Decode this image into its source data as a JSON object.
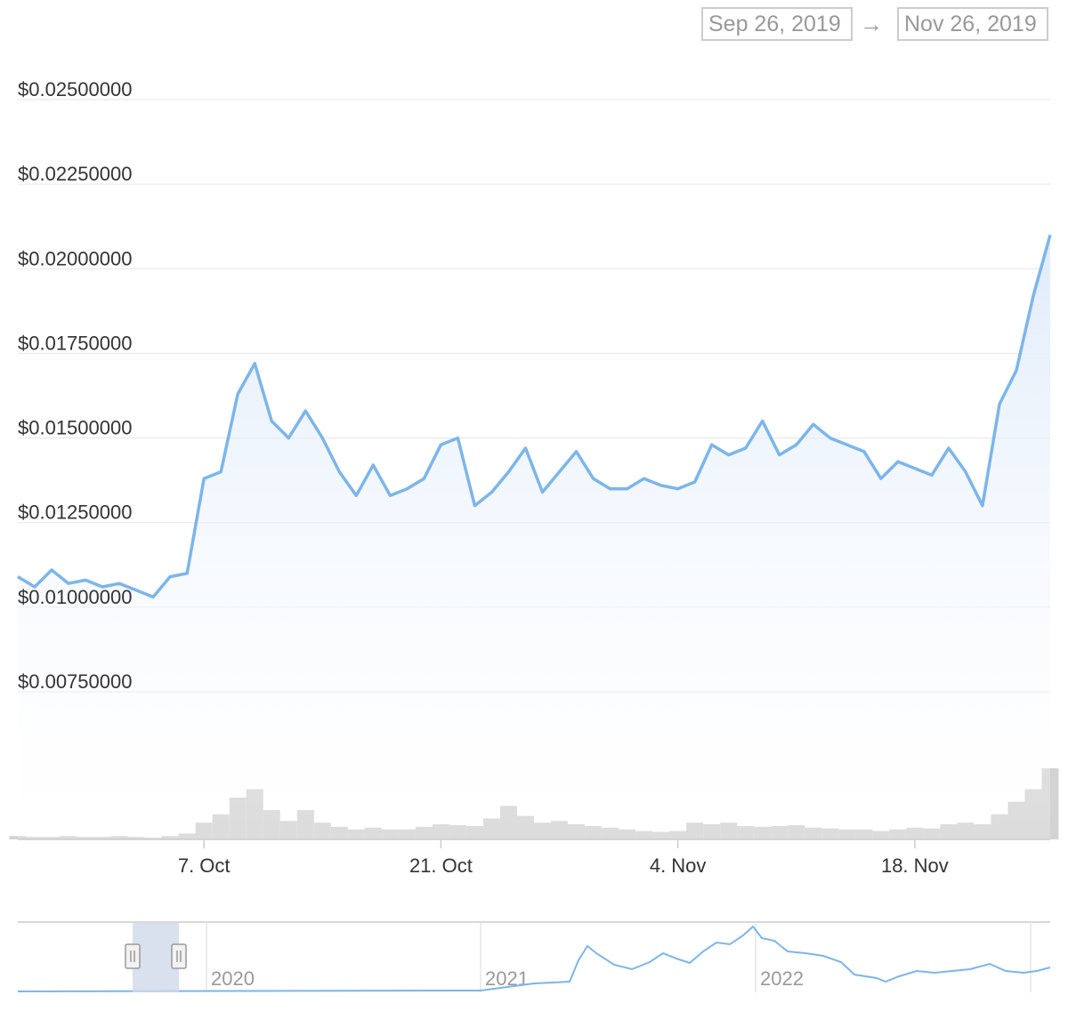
{
  "range_selector": {
    "from": "Sep 26, 2019",
    "arrow": "→",
    "to": "Nov 26, 2019"
  },
  "colors": {
    "line": "#7cb5ec",
    "area_top": "#e3eefb",
    "grid": "#e6e6e6",
    "volume": "#c8c8c8",
    "navigator_mask": "#cfd8ea"
  },
  "chart_data": {
    "type": "line",
    "title": "",
    "xlabel": "",
    "ylabel": "",
    "ylim": [
      0.0075,
      0.025
    ],
    "y_ticks": [
      {
        "value": 0.025,
        "label": "$0.02500000"
      },
      {
        "value": 0.0225,
        "label": "$0.02250000"
      },
      {
        "value": 0.02,
        "label": "$0.02000000"
      },
      {
        "value": 0.0175,
        "label": "$0.01750000"
      },
      {
        "value": 0.015,
        "label": "$0.01500000"
      },
      {
        "value": 0.0125,
        "label": "$0.01250000"
      },
      {
        "value": 0.01,
        "label": "$0.01000000"
      },
      {
        "value": 0.0075,
        "label": "$0.00750000"
      }
    ],
    "x_range": [
      "2019-09-26",
      "2019-11-26"
    ],
    "x_ticks": [
      {
        "date": "2019-10-07",
        "label": "7. Oct"
      },
      {
        "date": "2019-10-21",
        "label": "21. Oct"
      },
      {
        "date": "2019-11-04",
        "label": "4. Nov"
      },
      {
        "date": "2019-11-18",
        "label": "18. Nov"
      }
    ],
    "grid": true,
    "series": [
      {
        "x": [
          "2019-09-26",
          "2019-09-27",
          "2019-09-28",
          "2019-09-29",
          "2019-09-30",
          "2019-10-01",
          "2019-10-02",
          "2019-10-03",
          "2019-10-04",
          "2019-10-05",
          "2019-10-06",
          "2019-10-07",
          "2019-10-08",
          "2019-10-09",
          "2019-10-10",
          "2019-10-11",
          "2019-10-12",
          "2019-10-13",
          "2019-10-14",
          "2019-10-15",
          "2019-10-16",
          "2019-10-17",
          "2019-10-18",
          "2019-10-19",
          "2019-10-20",
          "2019-10-21",
          "2019-10-22",
          "2019-10-23",
          "2019-10-24",
          "2019-10-25",
          "2019-10-26",
          "2019-10-27",
          "2019-10-28",
          "2019-10-29",
          "2019-10-30",
          "2019-10-31",
          "2019-11-01",
          "2019-11-02",
          "2019-11-03",
          "2019-11-04",
          "2019-11-05",
          "2019-11-06",
          "2019-11-07",
          "2019-11-08",
          "2019-11-09",
          "2019-11-10",
          "2019-11-11",
          "2019-11-12",
          "2019-11-13",
          "2019-11-14",
          "2019-11-15",
          "2019-11-16",
          "2019-11-17",
          "2019-11-18",
          "2019-11-19",
          "2019-11-20",
          "2019-11-21",
          "2019-11-22",
          "2019-11-23",
          "2019-11-24",
          "2019-11-25",
          "2019-11-26"
        ],
        "values": [
          0.0109,
          0.0106,
          0.0111,
          0.0107,
          0.0108,
          0.0106,
          0.0107,
          0.0105,
          0.0103,
          0.0109,
          0.011,
          0.0138,
          0.014,
          0.0163,
          0.0172,
          0.0155,
          0.015,
          0.0158,
          0.015,
          0.014,
          0.0133,
          0.0142,
          0.0133,
          0.0135,
          0.0138,
          0.0148,
          0.015,
          0.013,
          0.0134,
          0.014,
          0.0147,
          0.0134,
          0.014,
          0.0146,
          0.0138,
          0.0135,
          0.0135,
          0.0138,
          0.0136,
          0.0135,
          0.0137,
          0.0148,
          0.0145,
          0.0147,
          0.0155,
          0.0145,
          0.0148,
          0.0154,
          0.015,
          0.0148,
          0.0146,
          0.0138,
          0.0143,
          0.0141,
          0.0139,
          0.0147,
          0.014,
          0.013,
          0.016,
          0.017,
          0.0192,
          0.021
        ]
      }
    ],
    "volume": [
      4,
      3,
      3,
      4,
      3,
      3,
      4,
      3,
      2,
      4,
      7,
      20,
      30,
      50,
      60,
      35,
      22,
      35,
      20,
      15,
      12,
      14,
      12,
      12,
      15,
      18,
      17,
      16,
      25,
      40,
      28,
      20,
      22,
      18,
      16,
      14,
      12,
      10,
      9,
      10,
      20,
      18,
      20,
      16,
      15,
      16,
      17,
      14,
      13,
      12,
      12,
      10,
      12,
      14,
      13,
      18,
      20,
      18,
      30,
      45,
      60,
      85
    ],
    "navigator": {
      "x_ticks": [
        "2020",
        "2021",
        "2022"
      ]
    }
  }
}
